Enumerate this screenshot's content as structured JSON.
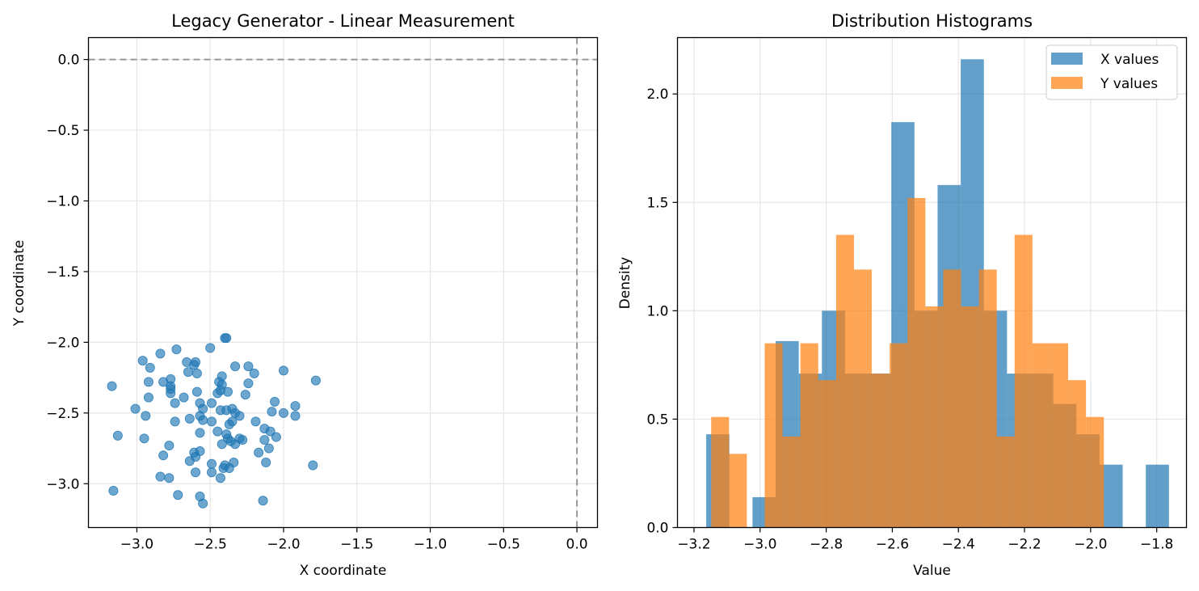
{
  "chart_data": [
    {
      "type": "scatter",
      "title": "Legacy Generator - Linear Measurement",
      "xlabel": "X coordinate",
      "ylabel": "Y coordinate",
      "xlim": [
        -3.33,
        0.14
      ],
      "ylim": [
        -3.31,
        0.155
      ],
      "xticks": [
        -3.0,
        -2.5,
        -2.0,
        -1.5,
        -1.0,
        -0.5,
        0.0
      ],
      "xtick_labels": [
        "−3.0",
        "−2.5",
        "−2.0",
        "−1.5",
        "−1.0",
        "−0.5",
        "0.0"
      ],
      "yticks": [
        0.0,
        -0.5,
        -1.0,
        -1.5,
        -2.0,
        -2.5,
        -3.0
      ],
      "ytick_labels": [
        "0.0",
        "−0.5",
        "−1.0",
        "−1.5",
        "−2.0",
        "−2.5",
        "−3.0"
      ],
      "grid": true,
      "reference_lines": {
        "x": 0.0,
        "y": 0.0,
        "style": "dashed",
        "color": "#999999"
      },
      "point_color": "#1f77b4",
      "point_alpha": 0.65,
      "points": [
        [
          -2.4,
          -1.97
        ],
        [
          -2.39,
          -1.97
        ],
        [
          -2.5,
          -2.04
        ],
        [
          -2.0,
          -2.2
        ],
        [
          -2.73,
          -2.05
        ],
        [
          -2.84,
          -2.08
        ],
        [
          -2.96,
          -2.13
        ],
        [
          -2.91,
          -2.18
        ],
        [
          -2.66,
          -2.14
        ],
        [
          -2.6,
          -2.14
        ],
        [
          -2.61,
          -2.16
        ],
        [
          -2.65,
          -2.21
        ],
        [
          -2.59,
          -2.22
        ],
        [
          -2.33,
          -2.17
        ],
        [
          -2.24,
          -2.17
        ],
        [
          -2.2,
          -2.22
        ],
        [
          -1.78,
          -2.27
        ],
        [
          -2.92,
          -2.28
        ],
        [
          -2.82,
          -2.28
        ],
        [
          -2.77,
          -2.26
        ],
        [
          -2.77,
          -2.31
        ],
        [
          -2.77,
          -2.33
        ],
        [
          -2.77,
          -2.36
        ],
        [
          -2.42,
          -2.24
        ],
        [
          -2.44,
          -2.28
        ],
        [
          -2.42,
          -2.3
        ],
        [
          -2.43,
          -2.34
        ],
        [
          -2.45,
          -2.36
        ],
        [
          -2.38,
          -2.35
        ],
        [
          -2.59,
          -2.35
        ],
        [
          -2.68,
          -2.39
        ],
        [
          -2.24,
          -2.29
        ],
        [
          -2.26,
          -2.37
        ],
        [
          -3.17,
          -2.31
        ],
        [
          -2.92,
          -2.39
        ],
        [
          -2.74,
          -2.43
        ],
        [
          -2.57,
          -2.43
        ],
        [
          -2.49,
          -2.43
        ],
        [
          -2.06,
          -2.42
        ],
        [
          -1.92,
          -2.45
        ],
        [
          -3.01,
          -2.47
        ],
        [
          -2.55,
          -2.47
        ],
        [
          -2.43,
          -2.48
        ],
        [
          -2.39,
          -2.48
        ],
        [
          -2.35,
          -2.47
        ],
        [
          -2.33,
          -2.5
        ],
        [
          -2.08,
          -2.49
        ],
        [
          -2.0,
          -2.5
        ],
        [
          -1.92,
          -2.52
        ],
        [
          -2.94,
          -2.52
        ],
        [
          -2.57,
          -2.52
        ],
        [
          -2.3,
          -2.52
        ],
        [
          -2.64,
          -2.54
        ],
        [
          -2.74,
          -2.56
        ],
        [
          -2.55,
          -2.55
        ],
        [
          -2.49,
          -2.56
        ],
        [
          -2.35,
          -2.56
        ],
        [
          -2.37,
          -2.58
        ],
        [
          -2.19,
          -2.56
        ],
        [
          -2.13,
          -2.61
        ],
        [
          -2.09,
          -2.63
        ],
        [
          -2.05,
          -2.67
        ],
        [
          -3.13,
          -2.66
        ],
        [
          -2.95,
          -2.68
        ],
        [
          -2.57,
          -2.64
        ],
        [
          -2.45,
          -2.63
        ],
        [
          -2.39,
          -2.65
        ],
        [
          -2.38,
          -2.68
        ],
        [
          -2.36,
          -2.7
        ],
        [
          -2.33,
          -2.72
        ],
        [
          -2.3,
          -2.68
        ],
        [
          -2.28,
          -2.69
        ],
        [
          -2.13,
          -2.69
        ],
        [
          -2.42,
          -2.72
        ],
        [
          -2.78,
          -2.73
        ],
        [
          -2.57,
          -2.77
        ],
        [
          -2.61,
          -2.78
        ],
        [
          -2.6,
          -2.81
        ],
        [
          -2.82,
          -2.8
        ],
        [
          -2.17,
          -2.78
        ],
        [
          -2.1,
          -2.75
        ],
        [
          -2.64,
          -2.84
        ],
        [
          -2.34,
          -2.85
        ],
        [
          -2.12,
          -2.85
        ],
        [
          -2.49,
          -2.86
        ],
        [
          -2.4,
          -2.87
        ],
        [
          -1.8,
          -2.87
        ],
        [
          -2.37,
          -2.89
        ],
        [
          -2.41,
          -2.89
        ],
        [
          -2.49,
          -2.92
        ],
        [
          -2.6,
          -2.92
        ],
        [
          -2.84,
          -2.95
        ],
        [
          -2.78,
          -2.96
        ],
        [
          -2.43,
          -2.96
        ],
        [
          -3.16,
          -3.05
        ],
        [
          -2.72,
          -3.08
        ],
        [
          -2.57,
          -3.09
        ],
        [
          -2.55,
          -3.14
        ],
        [
          -2.14,
          -3.12
        ]
      ]
    },
    {
      "type": "histogram",
      "title": "Distribution Histograms",
      "xlabel": "Value",
      "ylabel": "Density",
      "xlim": [
        -3.25,
        -1.71
      ],
      "ylim": [
        0,
        2.26
      ],
      "xticks": [
        -3.2,
        -3.0,
        -2.8,
        -2.6,
        -2.4,
        -2.2,
        -2.0,
        -1.8
      ],
      "xtick_labels": [
        "−3.2",
        "−3.0",
        "−2.8",
        "−2.6",
        "−2.4",
        "−2.2",
        "−2.0",
        "−1.8"
      ],
      "yticks": [
        0.0,
        0.5,
        1.0,
        1.5,
        2.0
      ],
      "ytick_labels": [
        "0.0",
        "0.5",
        "1.0",
        "1.5",
        "2.0"
      ],
      "grid": true,
      "legend_position": "top-right",
      "series": [
        {
          "name": "X values",
          "color": "#1f77b4",
          "alpha": 0.7,
          "edges": [
            -3.163,
            -3.093,
            -3.023,
            -2.953,
            -2.883,
            -2.813,
            -2.743,
            -2.673,
            -2.603,
            -2.533,
            -2.463,
            -2.393,
            -2.323,
            -2.253,
            -2.183,
            -2.113,
            -2.043,
            -1.973,
            -1.903,
            -1.833,
            -1.763
          ],
          "values": [
            0.43,
            0.0,
            0.14,
            0.86,
            0.71,
            1.0,
            0.71,
            0.71,
            1.87,
            1.0,
            1.58,
            2.16,
            1.0,
            0.71,
            0.71,
            0.57,
            0.43,
            0.29,
            0.0,
            0.29
          ]
        },
        {
          "name": "Y values",
          "color": "#ff7f0e",
          "alpha": 0.7,
          "edges": [
            -3.148,
            -3.094,
            -3.04,
            -2.986,
            -2.932,
            -2.878,
            -2.824,
            -2.77,
            -2.716,
            -2.662,
            -2.608,
            -2.554,
            -2.5,
            -2.446,
            -2.392,
            -2.338,
            -2.284,
            -2.23,
            -2.176,
            -2.122,
            -2.068,
            -2.014,
            -1.96
          ],
          "values": [
            0.51,
            0.34,
            0.0,
            0.85,
            0.42,
            0.85,
            0.68,
            1.35,
            1.19,
            0.71,
            0.85,
            1.52,
            1.02,
            1.19,
            1.02,
            1.19,
            0.42,
            1.35,
            0.85,
            0.85,
            0.68,
            0.51,
            0.3
          ]
        }
      ]
    }
  ]
}
